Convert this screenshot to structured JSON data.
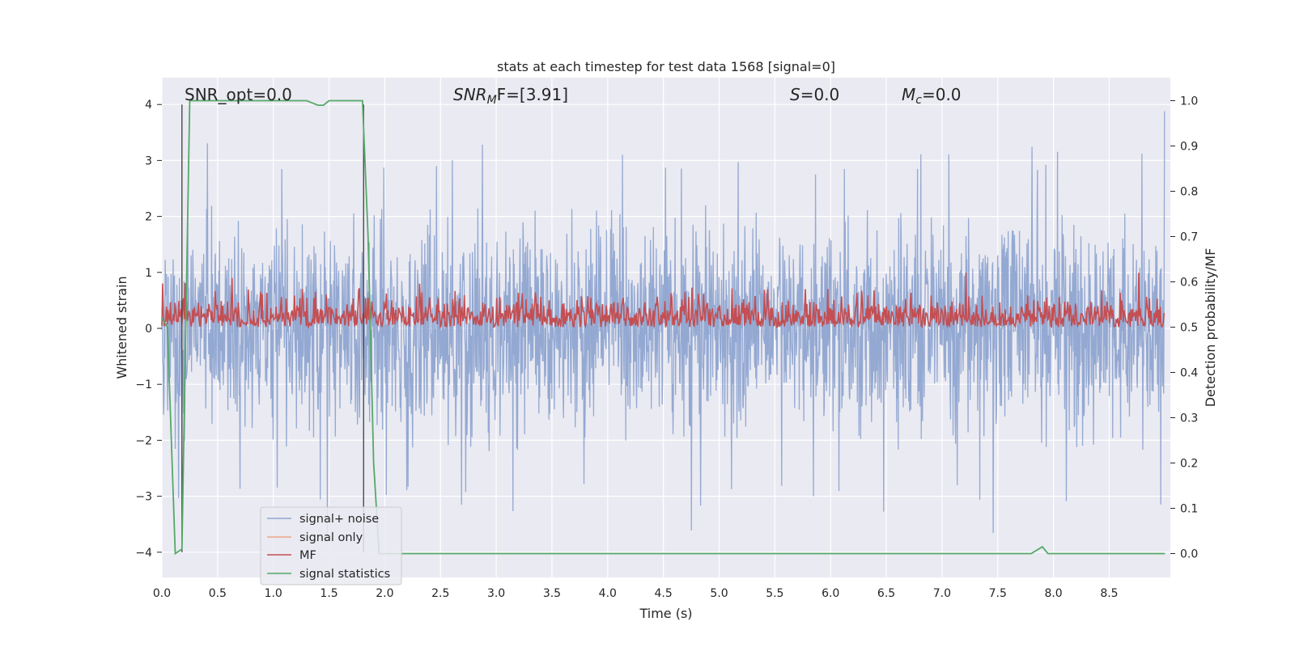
{
  "chart_data": {
    "type": "line",
    "title": "stats at each timestep for test data 1568 [signal=0]",
    "xlabel": "Time (s)",
    "ylabel": "Whitened strain",
    "y2label": "Detection probability/MF",
    "xlim": [
      0.0,
      9.0
    ],
    "ylim": [
      -4.4,
      4.4
    ],
    "y2lim": [
      -0.05,
      1.05
    ],
    "xticks": [
      "0.0",
      "0.5",
      "1.0",
      "1.5",
      "2.0",
      "2.5",
      "3.0",
      "3.5",
      "4.0",
      "4.5",
      "5.0",
      "5.5",
      "6.0",
      "6.5",
      "7.0",
      "7.5",
      "8.0",
      "8.5"
    ],
    "xtick_values": [
      0.0,
      0.5,
      1.0,
      1.5,
      2.0,
      2.5,
      3.0,
      3.5,
      4.0,
      4.5,
      5.0,
      5.5,
      6.0,
      6.5,
      7.0,
      7.5,
      8.0,
      8.5
    ],
    "yticks": [
      "−4",
      "−3",
      "−2",
      "−1",
      "0",
      "1",
      "2",
      "3",
      "4"
    ],
    "ytick_values": [
      -4,
      -3,
      -2,
      -1,
      0,
      1,
      2,
      3,
      4
    ],
    "y2ticks": [
      "0.0",
      "0.1",
      "0.2",
      "0.3",
      "0.4",
      "0.5",
      "0.6",
      "0.7",
      "0.8",
      "0.9",
      "1.0"
    ],
    "y2tick_values": [
      0.0,
      0.1,
      0.2,
      0.3,
      0.4,
      0.5,
      0.6,
      0.7,
      0.8,
      0.9,
      1.0
    ],
    "grid": true,
    "legend_placement": "lower-left",
    "annotations": {
      "snr_opt": "SNR_opt=0.0",
      "snr_mf_prefix": "SNR",
      "snr_mf_sub": "M",
      "snr_mf_suffix": "F=[3.91]",
      "s_var": "S",
      "s_value": "=0.0",
      "mc_var": "M",
      "mc_sub": "c",
      "mc_value": "=0.0"
    },
    "series": [
      {
        "name": "signal+ noise",
        "color": "#8fa5d0",
        "axis": "left",
        "description_stats": {
          "envelope_max": 3.9,
          "envelope_min": -4.0,
          "typical_peak": 2.0
        },
        "noise_seed": 1568
      },
      {
        "name": "signal only",
        "color": "#f0a586",
        "axis": "left",
        "values": []
      },
      {
        "name": "MF",
        "color": "#c44e52",
        "axis": "right",
        "baseline": 0.5,
        "typical_max": 0.58,
        "max": 0.62
      },
      {
        "name": "signal statistics",
        "color": "#55a868",
        "axis": "right",
        "x": [
          0.0,
          0.05,
          0.12,
          0.18,
          0.2,
          0.25,
          0.3,
          1.3,
          1.4,
          1.45,
          1.5,
          1.8,
          1.85,
          1.9,
          1.95,
          2.0,
          7.8,
          7.9,
          7.95,
          9.0
        ],
        "values": [
          0.52,
          0.5,
          0.0,
          0.01,
          0.3,
          1.0,
          1.0,
          1.0,
          0.99,
          0.99,
          1.0,
          1.0,
          0.7,
          0.2,
          0.0,
          0.0,
          0.0,
          0.015,
          0.0,
          0.0
        ]
      }
    ],
    "vertical_lines": [
      0.18,
      1.81
    ]
  }
}
